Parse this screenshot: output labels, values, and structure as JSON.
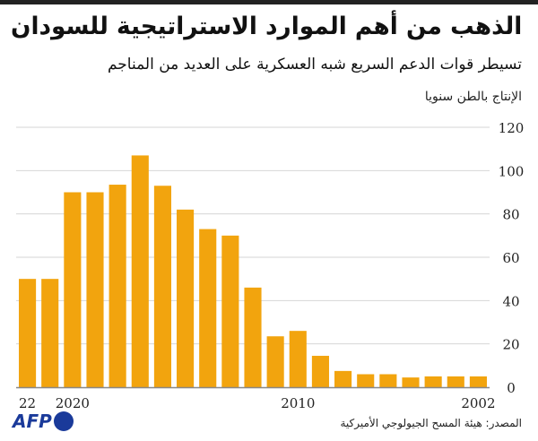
{
  "chart_data": {
    "type": "bar",
    "title": "الذهب من أهم الموارد الاستراتيجية للسودان",
    "subtitle": "تسيطر قوات الدعم السريع شبه العسكرية على العديد من المناجم",
    "ylabel": "الإنتاج بالطن سنويا",
    "xlabel": "",
    "ylim": [
      0,
      120
    ],
    "yticks": [
      "0",
      "20",
      "40",
      "60",
      "80",
      "100",
      "120"
    ],
    "x_tick_labels": [
      {
        "index": 0,
        "label": "22"
      },
      {
        "index": 2,
        "label": "2020"
      },
      {
        "index": 12,
        "label": "2010"
      },
      {
        "index": 20,
        "label": "2002"
      }
    ],
    "categories": [
      "2022",
      "2021",
      "2020",
      "2019",
      "2018",
      "2017",
      "2016",
      "2015",
      "2014",
      "2013",
      "2012",
      "2011",
      "2010",
      "2009",
      "2008",
      "2007",
      "2006",
      "2005",
      "2004",
      "2003",
      "2002"
    ],
    "values": [
      50,
      50,
      90,
      90,
      93.5,
      107,
      93,
      82,
      73,
      70,
      46,
      23.5,
      26,
      14.5,
      7.5,
      6,
      6,
      4.5,
      5,
      5,
      5
    ],
    "bar_color": "#f2a40e",
    "grid": true,
    "source": "المصدر: هيئة المسح الجيولوجي الأميركية",
    "logo": "AFP"
  }
}
